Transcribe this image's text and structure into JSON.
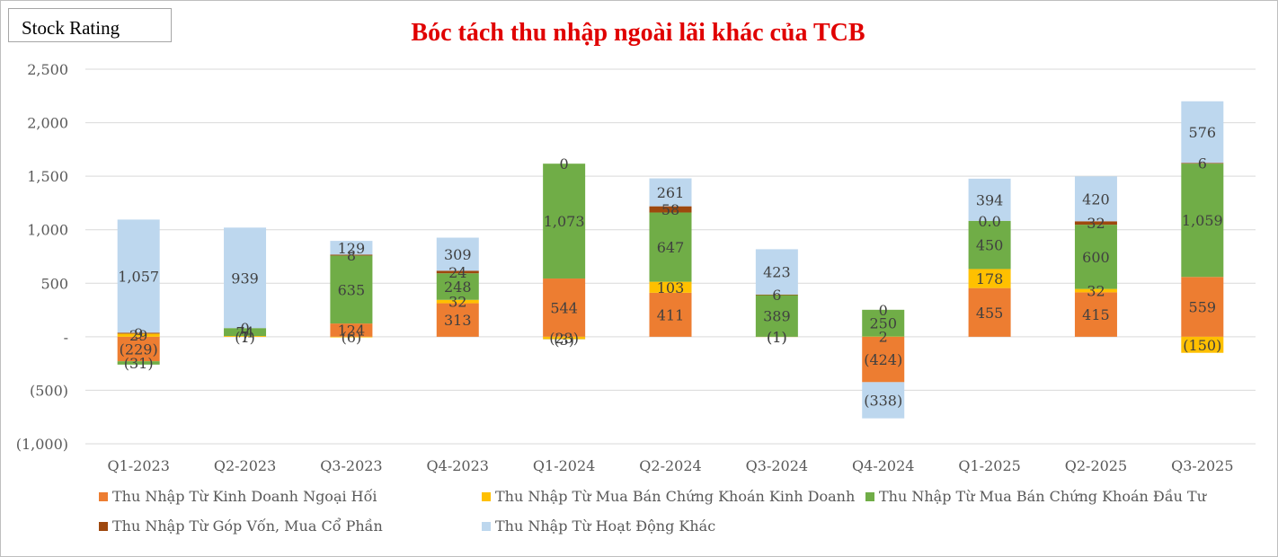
{
  "badge": {
    "label": "Stock Rating"
  },
  "chart_data": {
    "type": "bar",
    "stacked": true,
    "title": "Bóc tách thu nhập ngoài lãi khác của TCB",
    "xlabel": "",
    "ylabel": "",
    "ylim": [
      -1000,
      2500
    ],
    "yticks": [
      -1000,
      -500,
      0,
      500,
      1000,
      1500,
      2000,
      2500
    ],
    "ytick_labels": [
      "(1,000)",
      "(500)",
      "-",
      "500",
      "1,000",
      "1,500",
      "2,000",
      "2,500"
    ],
    "grid": true,
    "legend_position": "bottom",
    "categories": [
      "Q1-2023",
      "Q2-2023",
      "Q3-2023",
      "Q4-2023",
      "Q1-2024",
      "Q2-2024",
      "Q3-2024",
      "Q4-2024",
      "Q1-2025",
      "Q2-2025",
      "Q3-2025"
    ],
    "series": [
      {
        "name": "Thu Nhập Từ Kinh Doanh Ngoại Hối",
        "color": "#ed7d31",
        "values": [
          -229,
          -1,
          124,
          313,
          544,
          411,
          -1,
          -424,
          455,
          415,
          559
        ],
        "labels": [
          "(229)",
          "(1)",
          "124",
          "313",
          "544",
          "411",
          "(1)",
          "(424)",
          "455",
          "415",
          "559"
        ]
      },
      {
        "name": "Thu Nhập Từ Mua Bán Chứng Khoán Kinh Doanh",
        "color": "#ffc000",
        "values": [
          29,
          7,
          -6,
          32,
          -23,
          103,
          -1,
          2,
          178,
          32,
          -150
        ],
        "labels": [
          "29",
          "7",
          "(6)",
          "32",
          "(23)",
          "103",
          "(1)",
          "2",
          "178",
          "32",
          "(150)"
        ]
      },
      {
        "name": "Thu Nhập Từ Mua Bán Chứng Khoán Đầu Tư",
        "color": "#70ad47",
        "values": [
          -31,
          74,
          635,
          248,
          1073,
          647,
          389,
          250,
          450,
          600,
          1059
        ],
        "labels": [
          "(31)",
          "74",
          "635",
          "248",
          "1,073",
          "647",
          "389",
          "250",
          "450",
          "600",
          "1,059"
        ]
      },
      {
        "name": "Thu Nhập Từ Góp Vốn, Mua Cổ Phần",
        "color": "#9e480e",
        "values": [
          9,
          0,
          8,
          24,
          0,
          58,
          6,
          0,
          0.0,
          32,
          6
        ],
        "labels": [
          "9",
          "0",
          "8",
          "24",
          "0",
          "58",
          "6",
          "0",
          "0.0",
          "32",
          "6"
        ]
      },
      {
        "name": "Thu Nhập Từ Hoạt Động Khác",
        "color": "#bdd7ee",
        "values": [
          1057,
          939,
          129,
          309,
          -3,
          261,
          423,
          -338,
          394,
          420,
          576
        ],
        "labels": [
          "1,057",
          "939",
          "129",
          "309",
          "(3)",
          "261",
          "423",
          "(338)",
          "394",
          "420",
          "576"
        ]
      }
    ]
  }
}
